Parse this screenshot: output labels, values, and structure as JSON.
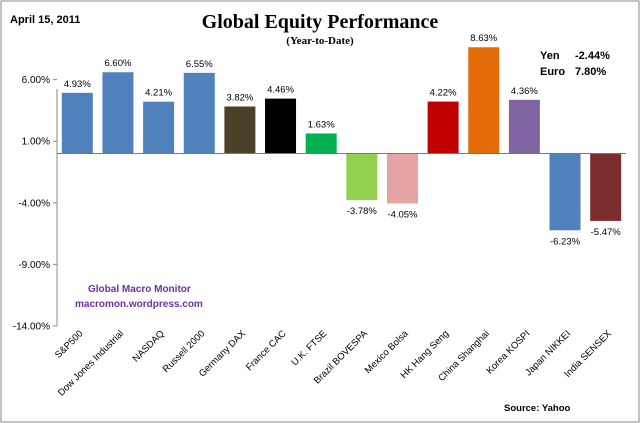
{
  "header": {
    "date": "April 15, 2011",
    "title": "Global Equity Performance",
    "subtitle": "(Year-to-Date)"
  },
  "fx": [
    {
      "label": "Yen",
      "value": "-2.44%",
      "color": "#c00000"
    },
    {
      "label": "Euro",
      "value": "7.80%",
      "color": "#00b050"
    }
  ],
  "watermark": {
    "line1": "Global Macro Monitor",
    "line2": "macromon.wordpress.com"
  },
  "source": "Source:   Yahoo",
  "chart_data": {
    "type": "bar",
    "title": "Global Equity Performance",
    "subtitle": "(Year-to-Date)",
    "xlabel": "",
    "ylabel": "",
    "ylim": [
      -14.0,
      8.0
    ],
    "yticks": [
      6.0,
      1.0,
      -4.0,
      -9.0,
      -14.0
    ],
    "ytick_labels": [
      "6.00%",
      "1.00%",
      "-4.00%",
      "-9.00%",
      "-14.00%"
    ],
    "grid": false,
    "categories": [
      "S&P500",
      "Dow Jones Industrial",
      "NASDAQ",
      "Russell 2000",
      "Germany DAX",
      "France CAC",
      "U.K. FTSE",
      "Brazil BOVESPA",
      "Mexico Bolsa",
      "HK Hang Seng",
      "China Shanghai",
      "Korea KOSPI",
      "Japan NIKKEI",
      "India SENSEX"
    ],
    "values": [
      4.93,
      6.6,
      4.21,
      6.55,
      3.82,
      4.46,
      1.63,
      -3.78,
      -4.05,
      4.22,
      8.63,
      4.36,
      -6.23,
      -5.47
    ],
    "value_labels": [
      "4.93%",
      "6.60%",
      "4.21%",
      "6.55%",
      "3.82%",
      "4.46%",
      "1.63%",
      "-3.78%",
      "-4.05%",
      "4.22%",
      "8.63%",
      "4.36%",
      "-6.23%",
      "-5.47%"
    ],
    "colors": [
      "#4f81bd",
      "#4f81bd",
      "#4f81bd",
      "#4f81bd",
      "#4a4129",
      "#000000",
      "#00b050",
      "#92d050",
      "#e6a3a3",
      "#c00000",
      "#e36c09",
      "#8064a2",
      "#4f81bd",
      "#7b2c2c"
    ]
  }
}
